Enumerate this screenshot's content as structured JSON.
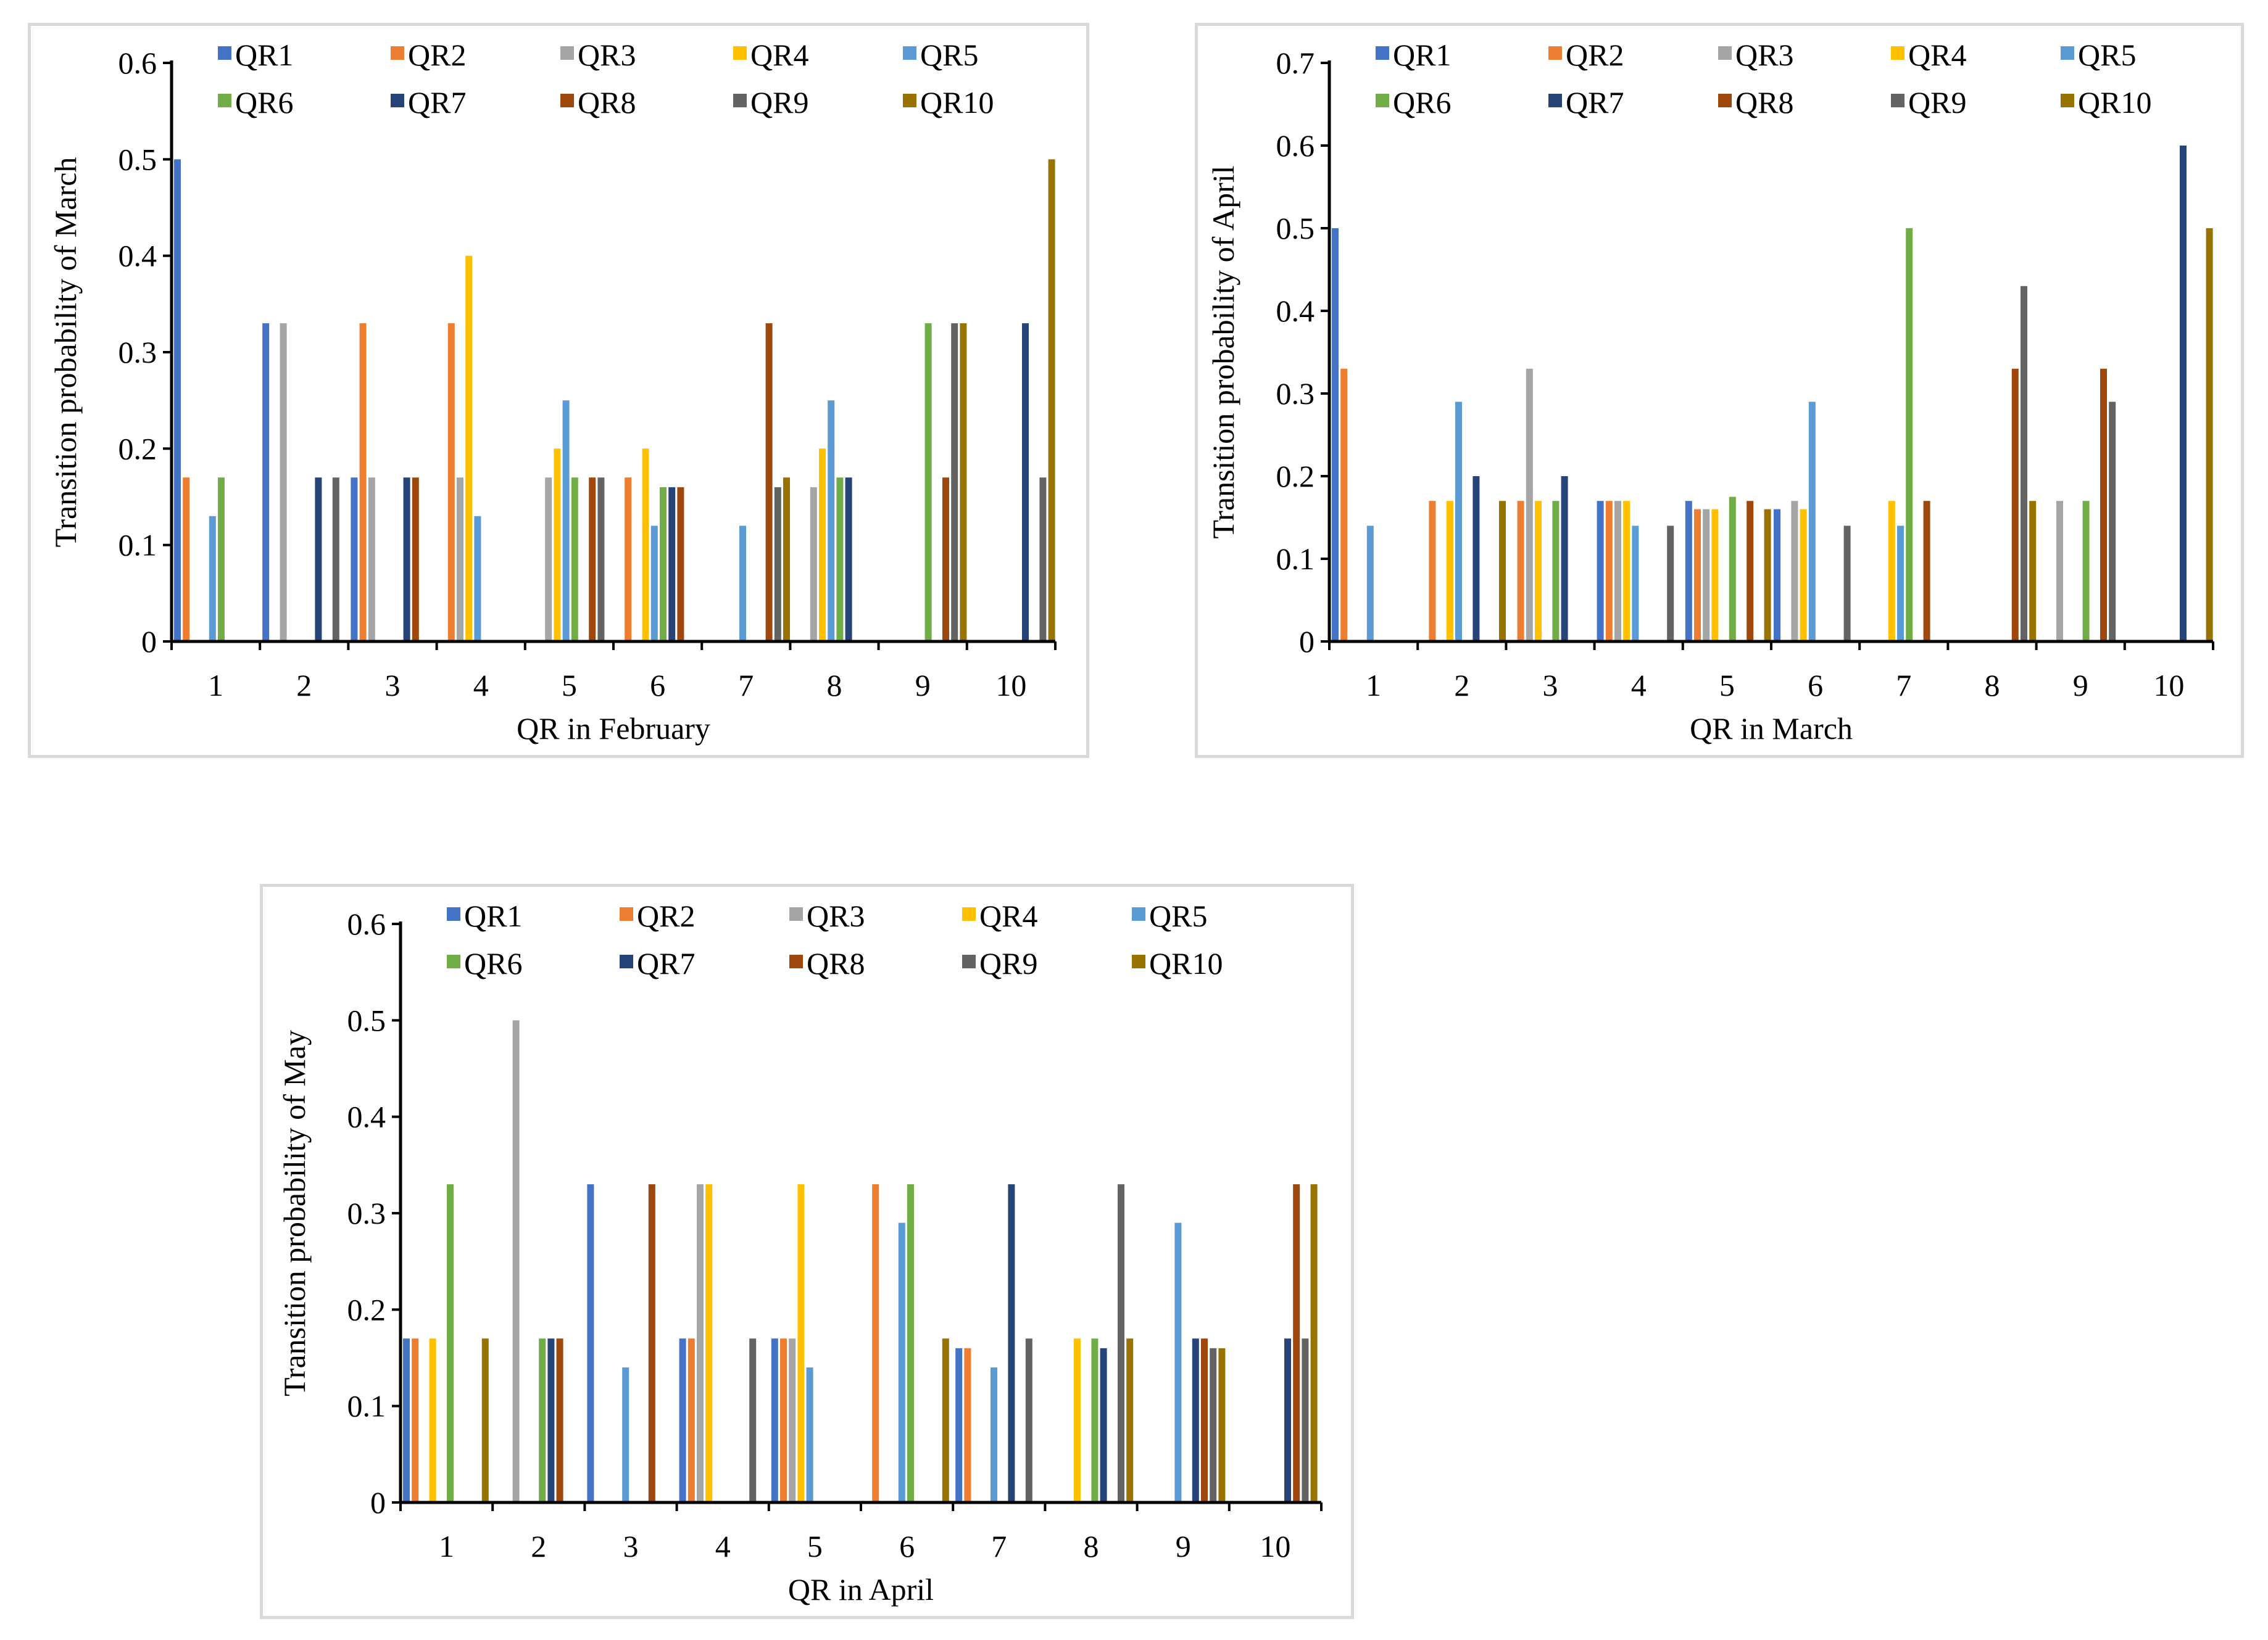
{
  "series_names": [
    "QR1",
    "QR2",
    "QR3",
    "QR4",
    "QR5",
    "QR6",
    "QR7",
    "QR8",
    "QR9",
    "QR10"
  ],
  "series_colors": [
    "#4472c4",
    "#ed7d31",
    "#a5a5a5",
    "#ffc000",
    "#5b9bd5",
    "#70ad47",
    "#264478",
    "#9e480e",
    "#636363",
    "#997300"
  ],
  "chart_data": [
    {
      "type": "bar",
      "xlabel": "QR in February",
      "ylabel": "Transition probability of March",
      "ylim": [
        0,
        0.6
      ],
      "yticks": [
        "0",
        "0.1",
        "0.2",
        "0.3",
        "0.4",
        "0.5",
        "0.6"
      ],
      "categories": [
        "1",
        "2",
        "3",
        "4",
        "5",
        "6",
        "7",
        "8",
        "9",
        "10"
      ],
      "legend": "top",
      "grid": false,
      "series": [
        {
          "name": "QR1",
          "values": [
            0.5,
            0.33,
            0.17,
            0,
            0,
            0,
            0,
            0,
            0,
            0
          ]
        },
        {
          "name": "QR2",
          "values": [
            0.17,
            0,
            0.33,
            0.33,
            0,
            0.17,
            0,
            0,
            0,
            0
          ]
        },
        {
          "name": "QR3",
          "values": [
            0,
            0.33,
            0.17,
            0.17,
            0.17,
            0,
            0,
            0.16,
            0,
            0
          ]
        },
        {
          "name": "QR4",
          "values": [
            0,
            0,
            0,
            0.4,
            0.2,
            0.2,
            0,
            0.2,
            0,
            0
          ]
        },
        {
          "name": "QR5",
          "values": [
            0.13,
            0,
            0,
            0.13,
            0.25,
            0.12,
            0.12,
            0.25,
            0,
            0
          ]
        },
        {
          "name": "QR6",
          "values": [
            0.17,
            0,
            0,
            0,
            0.17,
            0.16,
            0,
            0.17,
            0.33,
            0
          ]
        },
        {
          "name": "QR7",
          "values": [
            0,
            0.17,
            0.17,
            0,
            0,
            0.16,
            0,
            0.17,
            0,
            0.33
          ]
        },
        {
          "name": "QR8",
          "values": [
            0,
            0,
            0.17,
            0,
            0.17,
            0.16,
            0.33,
            0,
            0.17,
            0
          ]
        },
        {
          "name": "QR9",
          "values": [
            0,
            0.17,
            0,
            0,
            0.17,
            0,
            0.16,
            0,
            0.33,
            0.17
          ]
        },
        {
          "name": "QR10",
          "values": [
            0,
            0,
            0,
            0,
            0,
            0,
            0.17,
            0,
            0.33,
            0.5
          ]
        }
      ]
    },
    {
      "type": "bar",
      "xlabel": "QR in March",
      "ylabel": "Transition probability of April",
      "ylim": [
        0,
        0.7
      ],
      "yticks": [
        "0",
        "0.1",
        "0.2",
        "0.3",
        "0.4",
        "0.5",
        "0.6",
        "0.7"
      ],
      "categories": [
        "1",
        "2",
        "3",
        "4",
        "5",
        "6",
        "7",
        "8",
        "9",
        "10"
      ],
      "legend": "top",
      "grid": false,
      "series": [
        {
          "name": "QR1",
          "values": [
            0.5,
            0,
            0,
            0.17,
            0.17,
            0.16,
            0,
            0,
            0,
            0
          ]
        },
        {
          "name": "QR2",
          "values": [
            0.33,
            0.17,
            0.17,
            0.17,
            0.16,
            0,
            0,
            0,
            0,
            0
          ]
        },
        {
          "name": "QR3",
          "values": [
            0,
            0,
            0.33,
            0.17,
            0.16,
            0.17,
            0,
            0,
            0.17,
            0
          ]
        },
        {
          "name": "QR4",
          "values": [
            0,
            0.17,
            0.17,
            0.17,
            0.16,
            0.16,
            0.17,
            0,
            0,
            0
          ]
        },
        {
          "name": "QR5",
          "values": [
            0.14,
            0.29,
            0,
            0.14,
            0,
            0.29,
            0.14,
            0,
            0,
            0
          ]
        },
        {
          "name": "QR6",
          "values": [
            0,
            0,
            0.17,
            0,
            0.175,
            0,
            0.5,
            0,
            0.17,
            0
          ]
        },
        {
          "name": "QR7",
          "values": [
            0,
            0.2,
            0.2,
            0,
            0,
            0,
            0,
            0,
            0,
            0.6
          ]
        },
        {
          "name": "QR8",
          "values": [
            0,
            0,
            0,
            0,
            0.17,
            0,
            0.17,
            0.33,
            0.33,
            0
          ]
        },
        {
          "name": "QR9",
          "values": [
            0,
            0,
            0,
            0.14,
            0,
            0.14,
            0,
            0.43,
            0.29,
            0
          ]
        },
        {
          "name": "QR10",
          "values": [
            0,
            0.17,
            0,
            0,
            0.16,
            0,
            0,
            0.17,
            0,
            0.5
          ]
        }
      ]
    },
    {
      "type": "bar",
      "xlabel": "QR in April",
      "ylabel": "Transition probability of May",
      "ylim": [
        0,
        0.6
      ],
      "yticks": [
        "0",
        "0.1",
        "0.2",
        "0.3",
        "0.4",
        "0.5",
        "0.6"
      ],
      "categories": [
        "1",
        "2",
        "3",
        "4",
        "5",
        "6",
        "7",
        "8",
        "9",
        "10"
      ],
      "legend": "top",
      "grid": false,
      "series": [
        {
          "name": "QR1",
          "values": [
            0.17,
            0,
            0.33,
            0.17,
            0.17,
            0,
            0.16,
            0,
            0,
            0
          ]
        },
        {
          "name": "QR2",
          "values": [
            0.17,
            0,
            0,
            0.17,
            0.17,
            0.33,
            0.16,
            0,
            0,
            0
          ]
        },
        {
          "name": "QR3",
          "values": [
            0,
            0.5,
            0,
            0.33,
            0.17,
            0,
            0,
            0,
            0,
            0
          ]
        },
        {
          "name": "QR4",
          "values": [
            0.17,
            0,
            0,
            0.33,
            0.33,
            0,
            0,
            0.17,
            0,
            0
          ]
        },
        {
          "name": "QR5",
          "values": [
            0,
            0,
            0.14,
            0,
            0.14,
            0.29,
            0.14,
            0,
            0.29,
            0
          ]
        },
        {
          "name": "QR6",
          "values": [
            0.33,
            0.17,
            0,
            0,
            0,
            0.33,
            0,
            0.17,
            0,
            0
          ]
        },
        {
          "name": "QR7",
          "values": [
            0,
            0.17,
            0,
            0,
            0,
            0,
            0.33,
            0.16,
            0.17,
            0.17
          ]
        },
        {
          "name": "QR8",
          "values": [
            0,
            0.17,
            0.33,
            0,
            0,
            0,
            0,
            0,
            0.17,
            0.33
          ]
        },
        {
          "name": "QR9",
          "values": [
            0,
            0,
            0,
            0.17,
            0,
            0,
            0.17,
            0.33,
            0.16,
            0.17
          ]
        },
        {
          "name": "QR10",
          "values": [
            0.17,
            0,
            0,
            0,
            0,
            0.17,
            0,
            0.17,
            0.16,
            0.33
          ]
        }
      ]
    }
  ]
}
